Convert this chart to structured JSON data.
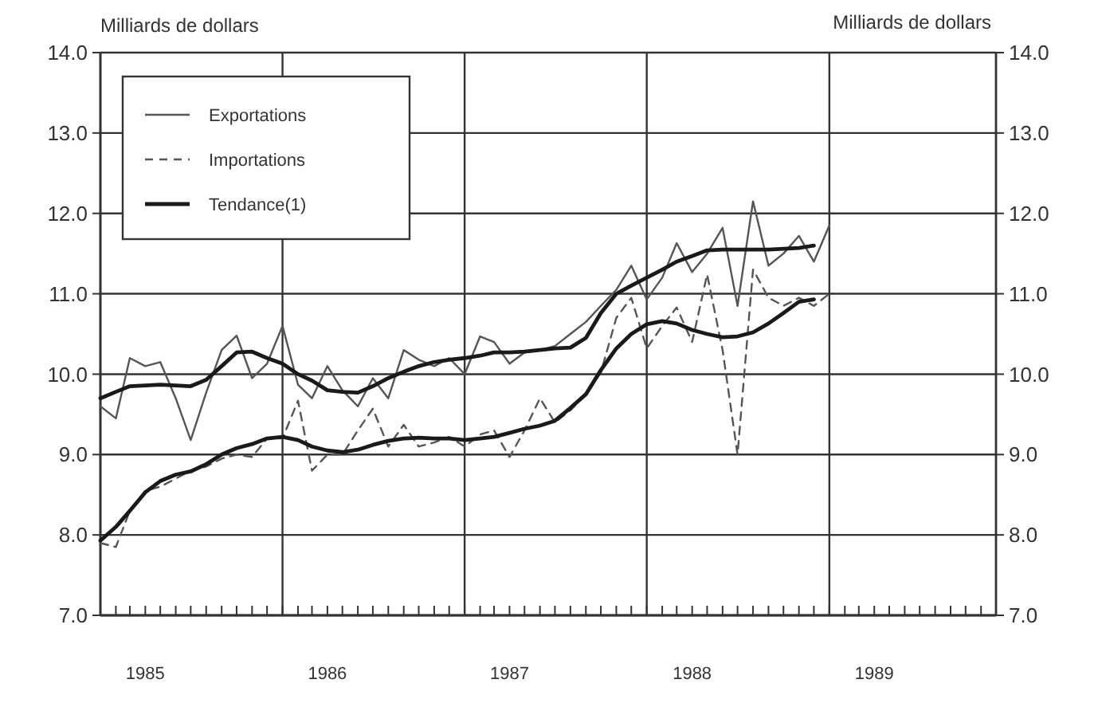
{
  "chart_data": {
    "type": "line",
    "ylabel": "Milliards de dollars",
    "y2label": "Milliards de dollars",
    "x": [
      "1985-01",
      "1985-02",
      "1985-03",
      "1985-04",
      "1985-05",
      "1985-06",
      "1985-07",
      "1985-08",
      "1985-09",
      "1985-10",
      "1985-11",
      "1985-12",
      "1986-01",
      "1986-02",
      "1986-03",
      "1986-04",
      "1986-05",
      "1986-06",
      "1986-07",
      "1986-08",
      "1986-09",
      "1986-10",
      "1986-11",
      "1986-12",
      "1987-01",
      "1987-02",
      "1987-03",
      "1987-04",
      "1987-05",
      "1987-06",
      "1987-07",
      "1987-08",
      "1987-09",
      "1987-10",
      "1987-11",
      "1987-12",
      "1988-01",
      "1988-02",
      "1988-03",
      "1988-04",
      "1988-05",
      "1988-06",
      "1988-07",
      "1988-08",
      "1988-09",
      "1988-10",
      "1988-11",
      "1988-12",
      "1989-01"
    ],
    "series": [
      {
        "name": "Exportations",
        "color": "#555555",
        "line_style": "solid",
        "values": [
          9.6,
          9.45,
          10.2,
          10.1,
          10.15,
          9.7,
          9.18,
          9.77,
          10.3,
          10.48,
          9.95,
          10.13,
          10.6,
          9.87,
          9.7,
          10.1,
          9.8,
          9.6,
          9.95,
          9.7,
          10.3,
          10.18,
          10.1,
          10.2,
          10.0,
          10.47,
          10.4,
          10.13,
          10.27,
          10.3,
          10.35,
          10.5,
          10.65,
          10.85,
          11.05,
          11.35,
          10.93,
          11.2,
          11.63,
          11.27,
          11.5,
          11.82,
          10.85,
          12.15,
          11.35,
          11.5,
          11.72,
          11.4,
          11.85
        ]
      },
      {
        "name": "Importations",
        "color": "#555555",
        "line_style": "dashed",
        "values": [
          7.9,
          7.85,
          8.3,
          8.55,
          8.6,
          8.7,
          8.8,
          8.85,
          8.95,
          9.0,
          8.97,
          9.2,
          9.2,
          9.67,
          8.8,
          9.0,
          9.0,
          9.3,
          9.57,
          9.1,
          9.37,
          9.1,
          9.15,
          9.22,
          9.1,
          9.25,
          9.3,
          8.97,
          9.3,
          9.7,
          9.4,
          9.55,
          9.75,
          10.02,
          10.7,
          10.95,
          10.32,
          10.6,
          10.83,
          10.4,
          11.24,
          10.3,
          9.0,
          11.3,
          10.95,
          10.85,
          10.95,
          10.85,
          11.0
        ]
      },
      {
        "name": "Tendance(1)",
        "color": "#1a1a1a",
        "line_style": "solid",
        "values": [
          9.7,
          9.78,
          9.85,
          9.86,
          9.87,
          9.86,
          9.85,
          9.93,
          10.1,
          10.27,
          10.28,
          10.2,
          10.13,
          10.0,
          9.92,
          9.8,
          9.78,
          9.77,
          9.85,
          9.95,
          10.03,
          10.1,
          10.15,
          10.18,
          10.2,
          10.23,
          10.27,
          10.27,
          10.28,
          10.3,
          10.32,
          10.33,
          10.45,
          10.76,
          11.0,
          11.1,
          11.2,
          11.3,
          11.4,
          11.47,
          11.54,
          11.55,
          11.55,
          11.55,
          11.55,
          11.56,
          11.57,
          11.6,
          null
        ]
      },
      {
        "color": "#1a1a1a",
        "line_style": "solid",
        "values": [
          7.93,
          8.1,
          8.3,
          8.53,
          8.67,
          8.75,
          8.79,
          8.88,
          9.0,
          9.08,
          9.13,
          9.2,
          9.22,
          9.18,
          9.1,
          9.05,
          9.03,
          9.06,
          9.12,
          9.17,
          9.2,
          9.21,
          9.2,
          9.2,
          9.18,
          9.2,
          9.22,
          9.27,
          9.32,
          9.36,
          9.42,
          9.58,
          9.75,
          10.05,
          10.32,
          10.5,
          10.62,
          10.66,
          10.63,
          10.55,
          10.5,
          10.46,
          10.47,
          10.52,
          10.63,
          10.76,
          10.9,
          10.93,
          null
        ]
      }
    ],
    "xlim": [
      "1985-01",
      "1989-12"
    ],
    "xticks": [
      {
        "value": "1985-01",
        "label": null
      },
      {
        "value": "1985-02",
        "label": null
      },
      {
        "value": "1985-03",
        "label": null
      },
      {
        "value": "1985-04",
        "label": "1985"
      },
      {
        "value": "1985-05",
        "label": null
      },
      {
        "value": "1985-06",
        "label": null
      },
      {
        "value": "1985-07",
        "label": null
      },
      {
        "value": "1985-08",
        "label": null
      },
      {
        "value": "1985-09",
        "label": null
      },
      {
        "value": "1985-10",
        "label": null
      },
      {
        "value": "1985-11",
        "label": null
      },
      {
        "value": "1985-12",
        "label": null
      },
      {
        "value": "1986-01",
        "label": null
      },
      {
        "value": "1986-02",
        "label": null
      },
      {
        "value": "1986-03",
        "label": null
      },
      {
        "value": "1986-04",
        "label": "1986"
      },
      {
        "value": "1986-05",
        "label": null
      },
      {
        "value": "1986-06",
        "label": null
      },
      {
        "value": "1986-07",
        "label": null
      },
      {
        "value": "1986-08",
        "label": null
      },
      {
        "value": "1986-09",
        "label": null
      },
      {
        "value": "1986-10",
        "label": null
      },
      {
        "value": "1986-11",
        "label": null
      },
      {
        "value": "1986-12",
        "label": null
      },
      {
        "value": "1987-01",
        "label": null
      },
      {
        "value": "1987-02",
        "label": null
      },
      {
        "value": "1987-03",
        "label": null
      },
      {
        "value": "1987-04",
        "label": "1987"
      },
      {
        "value": "1987-05",
        "label": null
      },
      {
        "value": "1987-06",
        "label": null
      },
      {
        "value": "1987-07",
        "label": null
      },
      {
        "value": "1987-08",
        "label": null
      },
      {
        "value": "1987-09",
        "label": null
      },
      {
        "value": "1987-10",
        "label": null
      },
      {
        "value": "1987-11",
        "label": null
      },
      {
        "value": "1987-12",
        "label": null
      },
      {
        "value": "1988-01",
        "label": null
      },
      {
        "value": "1988-02",
        "label": null
      },
      {
        "value": "1988-03",
        "label": null
      },
      {
        "value": "1988-04",
        "label": "1988"
      },
      {
        "value": "1988-05",
        "label": null
      },
      {
        "value": "1988-06",
        "label": null
      },
      {
        "value": "1988-07",
        "label": null
      },
      {
        "value": "1988-08",
        "label": null
      },
      {
        "value": "1988-09",
        "label": null
      },
      {
        "value": "1988-10",
        "label": null
      },
      {
        "value": "1988-11",
        "label": null
      },
      {
        "value": "1988-12",
        "label": null
      },
      {
        "value": "1989-01",
        "label": null
      },
      {
        "value": "1989-02",
        "label": null
      },
      {
        "value": "1989-03",
        "label": null
      },
      {
        "value": "1989-04",
        "label": "1989"
      },
      {
        "value": "1989-05",
        "label": null
      },
      {
        "value": "1989-06",
        "label": null
      },
      {
        "value": "1989-07",
        "label": null
      },
      {
        "value": "1989-08",
        "label": null
      },
      {
        "value": "1989-09",
        "label": null
      },
      {
        "value": "1989-10",
        "label": null
      },
      {
        "value": "1989-11",
        "label": null
      },
      {
        "value": "1989-12",
        "label": null
      }
    ],
    "ylim": [
      7,
      14
    ],
    "yticks": [
      {
        "value": 7,
        "label": "7.0"
      },
      {
        "value": 8,
        "label": "8.0"
      },
      {
        "value": 9,
        "label": "9.0"
      },
      {
        "value": 10,
        "label": "10.0"
      },
      {
        "value": 11,
        "label": "11.0"
      },
      {
        "value": 12,
        "label": "12.0"
      },
      {
        "value": 13,
        "label": "13.0"
      },
      {
        "value": 14,
        "label": "14.0"
      }
    ],
    "y2lim": [
      7,
      14
    ],
    "y2ticks": [
      {
        "value": 7,
        "label": "7.0"
      },
      {
        "value": 8,
        "label": "8.0"
      },
      {
        "value": 9,
        "label": "9.0"
      },
      {
        "value": 10,
        "label": "10.0"
      },
      {
        "value": 11,
        "label": "11.0"
      },
      {
        "value": 12,
        "label": "12.0"
      },
      {
        "value": 13,
        "label": "13.0"
      },
      {
        "value": 14,
        "label": "14.0"
      }
    ],
    "grid": true,
    "legend": "top left",
    "marker": "none"
  }
}
